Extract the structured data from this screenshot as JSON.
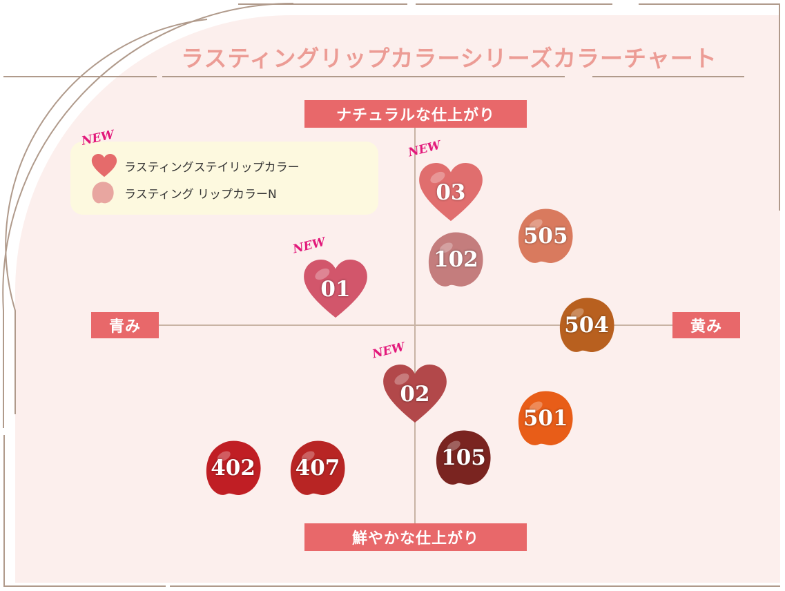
{
  "title": "ラスティングリップカラーシリーズカラーチャート",
  "legend": {
    "items": [
      {
        "label": "ラスティングステイリップカラー",
        "shape": "heart",
        "color": "#e56b6b"
      },
      {
        "label": "ラスティング リップカラーN",
        "shape": "blob",
        "color": "#e8a6a0"
      }
    ],
    "new_badge": "NEW"
  },
  "chart_data": {
    "type": "scatter",
    "title": "ラスティングリップカラーシリーズカラーチャート",
    "axes": {
      "top": "ナチュラルな仕上がり",
      "bottom": "鮮やかな仕上がり",
      "left": "青み",
      "right": "黄み"
    },
    "xlim": [
      -1,
      1
    ],
    "ylim": [
      -1,
      1
    ],
    "x_meaning": "青み (-1) to 黄み (+1)",
    "y_meaning": "鮮やかな仕上がり (-1) to ナチュラルな仕上がり (+1)",
    "grid": false,
    "series": [
      {
        "name": "ラスティングステイリップカラー",
        "shape": "heart",
        "points": [
          {
            "label": "01",
            "x": -0.31,
            "y": 0.18,
            "color": "#d2566b",
            "new": true
          },
          {
            "label": "02",
            "x": 0.0,
            "y": -0.35,
            "color": "#b2484a",
            "new": true
          },
          {
            "label": "03",
            "x": 0.14,
            "y": 0.67,
            "color": "#e06e6e",
            "new": true
          }
        ]
      },
      {
        "name": "ラスティング リップカラーN",
        "shape": "blob",
        "points": [
          {
            "label": "102",
            "x": 0.16,
            "y": 0.33,
            "color": "#c47d7d",
            "new": false
          },
          {
            "label": "105",
            "x": 0.19,
            "y": -0.67,
            "color": "#7a2420",
            "new": false
          },
          {
            "label": "402",
            "x": -0.71,
            "y": -0.72,
            "color": "#c01e24",
            "new": false
          },
          {
            "label": "407",
            "x": -0.38,
            "y": -0.72,
            "color": "#b82524",
            "new": false
          },
          {
            "label": "501",
            "x": 0.51,
            "y": -0.47,
            "color": "#e85d18",
            "new": false
          },
          {
            "label": "504",
            "x": 0.67,
            "y": 0.0,
            "color": "#b8601f",
            "new": false
          },
          {
            "label": "505",
            "x": 0.51,
            "y": 0.45,
            "color": "#d97a5e",
            "new": false
          }
        ]
      }
    ]
  },
  "colors": {
    "accent": "#e8686a",
    "title": "#ec9c95",
    "background": "#fcefed",
    "new_badge": "#e2197b",
    "legend_bg": "#fdf9df",
    "axis_line": "#c8b3a4"
  }
}
